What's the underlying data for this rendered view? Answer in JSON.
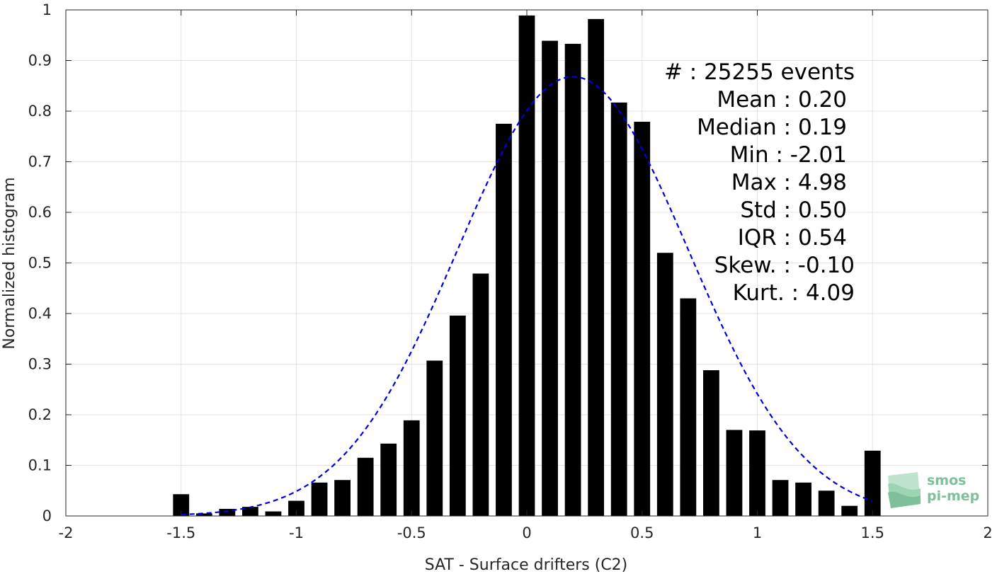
{
  "chart_data": {
    "type": "bar",
    "xlabel": "SAT - Surface drifters (C2)",
    "ylabel": "Normalized histogram",
    "xlim": [
      -2,
      2
    ],
    "ylim": [
      0,
      1
    ],
    "xticks": [
      -2,
      -1.5,
      -1,
      -0.5,
      0,
      0.5,
      1,
      1.5,
      2
    ],
    "yticks": [
      0,
      0.1,
      0.2,
      0.3,
      0.4,
      0.5,
      0.6,
      0.7,
      0.8,
      0.9,
      1
    ],
    "xtick_labels": [
      "-2",
      "-1.5",
      "-1",
      "-0.5",
      "0",
      "0.5",
      "1",
      "1.5",
      "2"
    ],
    "ytick_labels": [
      "0",
      "0.1",
      "0.2",
      "0.3",
      "0.4",
      "0.5",
      "0.6",
      "0.7",
      "0.8",
      "0.9",
      "1"
    ],
    "grid": true,
    "bar_width": 0.07,
    "bar_color": "#000000",
    "bins": [
      {
        "x": -1.5,
        "value": 0.043
      },
      {
        "x": -1.4,
        "value": 0.005
      },
      {
        "x": -1.3,
        "value": 0.014
      },
      {
        "x": -1.2,
        "value": 0.018
      },
      {
        "x": -1.1,
        "value": 0.009
      },
      {
        "x": -1.0,
        "value": 0.03
      },
      {
        "x": -0.9,
        "value": 0.066
      },
      {
        "x": -0.8,
        "value": 0.071
      },
      {
        "x": -0.7,
        "value": 0.115
      },
      {
        "x": -0.6,
        "value": 0.143
      },
      {
        "x": -0.5,
        "value": 0.189
      },
      {
        "x": -0.4,
        "value": 0.307
      },
      {
        "x": -0.3,
        "value": 0.396
      },
      {
        "x": -0.2,
        "value": 0.479
      },
      {
        "x": -0.1,
        "value": 0.775
      },
      {
        "x": 0.0,
        "value": 0.989
      },
      {
        "x": 0.1,
        "value": 0.939
      },
      {
        "x": 0.2,
        "value": 0.933
      },
      {
        "x": 0.3,
        "value": 0.982
      },
      {
        "x": 0.4,
        "value": 0.817
      },
      {
        "x": 0.5,
        "value": 0.779
      },
      {
        "x": 0.6,
        "value": 0.52
      },
      {
        "x": 0.7,
        "value": 0.43
      },
      {
        "x": 0.8,
        "value": 0.288
      },
      {
        "x": 0.9,
        "value": 0.17
      },
      {
        "x": 1.0,
        "value": 0.169
      },
      {
        "x": 1.1,
        "value": 0.071
      },
      {
        "x": 1.2,
        "value": 0.066
      },
      {
        "x": 1.3,
        "value": 0.05
      },
      {
        "x": 1.4,
        "value": 0.02
      },
      {
        "x": 1.5,
        "value": 0.129
      }
    ],
    "fit_curve": {
      "style": "dashed",
      "color": "#0000dd",
      "mean": 0.2,
      "std": 0.5,
      "peak": 0.868,
      "x_range": [
        -1.5,
        1.5
      ]
    },
    "stats": [
      {
        "label": "#  : 25255 events"
      },
      {
        "label": "Mean : 0.20"
      },
      {
        "label": "Median : 0.19"
      },
      {
        "label": "Min : -2.01"
      },
      {
        "label": "Max : 4.98"
      },
      {
        "label": "Std : 0.50"
      },
      {
        "label": "IQR : 0.54"
      },
      {
        "label": "Skew. : -0.10"
      },
      {
        "label": "Kurt. : 4.09"
      }
    ]
  },
  "logo": {
    "line1": "smos",
    "line2": "pi-mep",
    "color": "#7fbf9a"
  }
}
